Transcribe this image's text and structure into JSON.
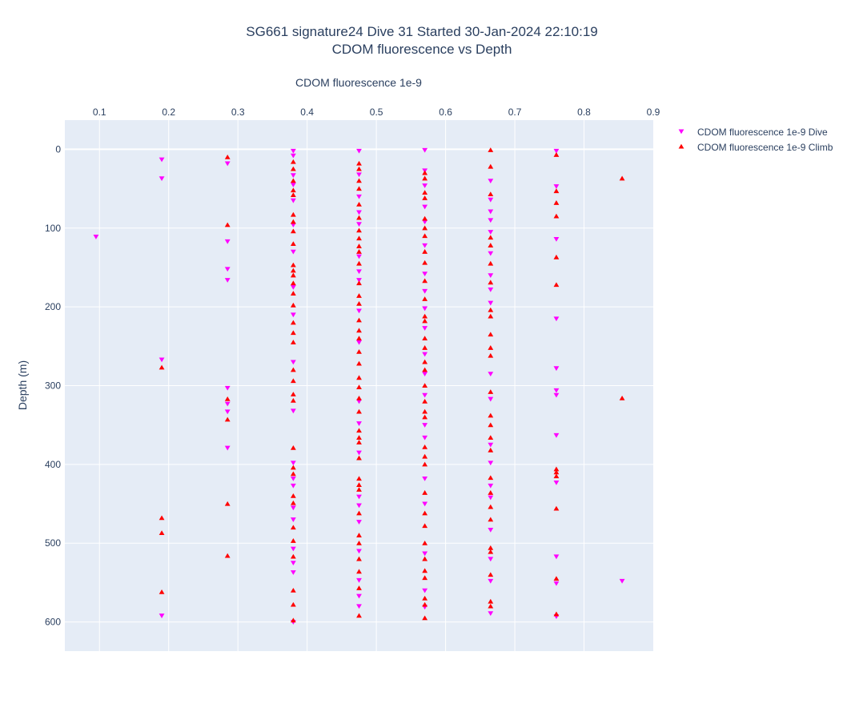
{
  "chart_data": {
    "type": "scatter",
    "title": "SG661 signature24 Dive 31 Started 30-Jan-2024 22:10:19",
    "subtitle": "CDOM fluorescence vs Depth",
    "xlabel": "CDOM fluorescence 1e-9",
    "ylabel": "Depth (m)",
    "xlim": [
      0.05,
      0.9
    ],
    "ylim": [
      637,
      -37
    ],
    "y_reversed": true,
    "x_axis_position": "top",
    "x_ticks": [
      "0.1",
      "0.2",
      "0.3",
      "0.4",
      "0.5",
      "0.6",
      "0.7",
      "0.8",
      "0.9"
    ],
    "x_tick_values": [
      0.1,
      0.2,
      0.3,
      0.4,
      0.5,
      0.6,
      0.7,
      0.8,
      0.9
    ],
    "y_ticks": [
      "0",
      "100",
      "200",
      "300",
      "400",
      "500",
      "600"
    ],
    "y_tick_values": [
      0,
      100,
      200,
      300,
      400,
      500,
      600
    ],
    "grid": true,
    "legend_position": "top-right",
    "colors": {
      "dive": "#ff00ff",
      "climb": "#ff0000",
      "plot_bg": "#e5ecf6",
      "grid": "#ffffff",
      "text": "#2a3f5f"
    },
    "series": [
      {
        "name": "CDOM fluorescence 1e-9 Dive",
        "marker": "triangle-down",
        "color": "#ff00ff",
        "points": [
          [
            0.19,
            13
          ],
          [
            0.19,
            37
          ],
          [
            0.095,
            111
          ],
          [
            0.19,
            267
          ],
          [
            0.19,
            592
          ],
          [
            0.285,
            18
          ],
          [
            0.285,
            117
          ],
          [
            0.285,
            152
          ],
          [
            0.285,
            166
          ],
          [
            0.285,
            303
          ],
          [
            0.285,
            323
          ],
          [
            0.285,
            333
          ],
          [
            0.285,
            379
          ],
          [
            0.38,
            2
          ],
          [
            0.38,
            8
          ],
          [
            0.38,
            33
          ],
          [
            0.38,
            45
          ],
          [
            0.38,
            65
          ],
          [
            0.38,
            96
          ],
          [
            0.38,
            130
          ],
          [
            0.38,
            175
          ],
          [
            0.38,
            210
          ],
          [
            0.38,
            270
          ],
          [
            0.38,
            332
          ],
          [
            0.38,
            398
          ],
          [
            0.38,
            418
          ],
          [
            0.38,
            427
          ],
          [
            0.38,
            455
          ],
          [
            0.38,
            470
          ],
          [
            0.38,
            507
          ],
          [
            0.38,
            525
          ],
          [
            0.38,
            537
          ],
          [
            0.38,
            600
          ],
          [
            0.475,
            2
          ],
          [
            0.475,
            32
          ],
          [
            0.475,
            60
          ],
          [
            0.475,
            80
          ],
          [
            0.475,
            95
          ],
          [
            0.475,
            136
          ],
          [
            0.475,
            155
          ],
          [
            0.475,
            166
          ],
          [
            0.475,
            205
          ],
          [
            0.475,
            245
          ],
          [
            0.475,
            320
          ],
          [
            0.475,
            348
          ],
          [
            0.475,
            385
          ],
          [
            0.475,
            441
          ],
          [
            0.475,
            452
          ],
          [
            0.475,
            473
          ],
          [
            0.475,
            510
          ],
          [
            0.475,
            547
          ],
          [
            0.475,
            567
          ],
          [
            0.475,
            580
          ],
          [
            0.57,
            1
          ],
          [
            0.57,
            27
          ],
          [
            0.57,
            46
          ],
          [
            0.57,
            73
          ],
          [
            0.57,
            92
          ],
          [
            0.57,
            122
          ],
          [
            0.57,
            158
          ],
          [
            0.57,
            180
          ],
          [
            0.57,
            202
          ],
          [
            0.57,
            227
          ],
          [
            0.57,
            260
          ],
          [
            0.57,
            285
          ],
          [
            0.57,
            312
          ],
          [
            0.57,
            350
          ],
          [
            0.57,
            366
          ],
          [
            0.57,
            418
          ],
          [
            0.57,
            450
          ],
          [
            0.57,
            513
          ],
          [
            0.57,
            560
          ],
          [
            0.57,
            581
          ],
          [
            0.665,
            40
          ],
          [
            0.665,
            64
          ],
          [
            0.665,
            79
          ],
          [
            0.665,
            90
          ],
          [
            0.665,
            105
          ],
          [
            0.665,
            132
          ],
          [
            0.665,
            160
          ],
          [
            0.665,
            178
          ],
          [
            0.665,
            195
          ],
          [
            0.665,
            285
          ],
          [
            0.665,
            317
          ],
          [
            0.665,
            375
          ],
          [
            0.665,
            398
          ],
          [
            0.665,
            427
          ],
          [
            0.665,
            442
          ],
          [
            0.665,
            483
          ],
          [
            0.665,
            520
          ],
          [
            0.665,
            548
          ],
          [
            0.665,
            589
          ],
          [
            0.76,
            2
          ],
          [
            0.76,
            47
          ],
          [
            0.76,
            114
          ],
          [
            0.76,
            215
          ],
          [
            0.76,
            278
          ],
          [
            0.76,
            306
          ],
          [
            0.76,
            312
          ],
          [
            0.76,
            363
          ],
          [
            0.76,
            423
          ],
          [
            0.76,
            517
          ],
          [
            0.76,
            551
          ],
          [
            0.76,
            593
          ],
          [
            0.855,
            548
          ]
        ]
      },
      {
        "name": "CDOM fluorescence 1e-9 Climb",
        "marker": "triangle-up",
        "color": "#ff0000",
        "points": [
          [
            0.19,
            277
          ],
          [
            0.19,
            468
          ],
          [
            0.19,
            487
          ],
          [
            0.19,
            562
          ],
          [
            0.285,
            10
          ],
          [
            0.285,
            96
          ],
          [
            0.285,
            317
          ],
          [
            0.285,
            343
          ],
          [
            0.285,
            450
          ],
          [
            0.285,
            516
          ],
          [
            0.38,
            16
          ],
          [
            0.38,
            25
          ],
          [
            0.38,
            40
          ],
          [
            0.38,
            52
          ],
          [
            0.38,
            58
          ],
          [
            0.38,
            83
          ],
          [
            0.38,
            92
          ],
          [
            0.38,
            104
          ],
          [
            0.38,
            120
          ],
          [
            0.38,
            147
          ],
          [
            0.38,
            154
          ],
          [
            0.38,
            160
          ],
          [
            0.38,
            170
          ],
          [
            0.38,
            183
          ],
          [
            0.38,
            198
          ],
          [
            0.38,
            220
          ],
          [
            0.38,
            233
          ],
          [
            0.38,
            245
          ],
          [
            0.38,
            280
          ],
          [
            0.38,
            294
          ],
          [
            0.38,
            311
          ],
          [
            0.38,
            319
          ],
          [
            0.38,
            379
          ],
          [
            0.38,
            404
          ],
          [
            0.38,
            412
          ],
          [
            0.38,
            440
          ],
          [
            0.38,
            449
          ],
          [
            0.38,
            480
          ],
          [
            0.38,
            497
          ],
          [
            0.38,
            517
          ],
          [
            0.38,
            560
          ],
          [
            0.38,
            578
          ],
          [
            0.38,
            598
          ],
          [
            0.475,
            18
          ],
          [
            0.475,
            25
          ],
          [
            0.475,
            40
          ],
          [
            0.475,
            50
          ],
          [
            0.475,
            70
          ],
          [
            0.475,
            87
          ],
          [
            0.475,
            103
          ],
          [
            0.475,
            113
          ],
          [
            0.475,
            123
          ],
          [
            0.475,
            130
          ],
          [
            0.475,
            145
          ],
          [
            0.475,
            170
          ],
          [
            0.475,
            186
          ],
          [
            0.475,
            196
          ],
          [
            0.475,
            217
          ],
          [
            0.475,
            230
          ],
          [
            0.475,
            240
          ],
          [
            0.475,
            257
          ],
          [
            0.475,
            272
          ],
          [
            0.475,
            290
          ],
          [
            0.475,
            302
          ],
          [
            0.475,
            316
          ],
          [
            0.475,
            333
          ],
          [
            0.475,
            357
          ],
          [
            0.475,
            366
          ],
          [
            0.475,
            372
          ],
          [
            0.475,
            392
          ],
          [
            0.475,
            418
          ],
          [
            0.475,
            426
          ],
          [
            0.475,
            432
          ],
          [
            0.475,
            462
          ],
          [
            0.475,
            490
          ],
          [
            0.475,
            500
          ],
          [
            0.475,
            520
          ],
          [
            0.475,
            536
          ],
          [
            0.475,
            557
          ],
          [
            0.475,
            592
          ],
          [
            0.57,
            30
          ],
          [
            0.57,
            37
          ],
          [
            0.57,
            55
          ],
          [
            0.57,
            62
          ],
          [
            0.57,
            88
          ],
          [
            0.57,
            100
          ],
          [
            0.57,
            110
          ],
          [
            0.57,
            130
          ],
          [
            0.57,
            144
          ],
          [
            0.57,
            167
          ],
          [
            0.57,
            190
          ],
          [
            0.57,
            212
          ],
          [
            0.57,
            218
          ],
          [
            0.57,
            240
          ],
          [
            0.57,
            252
          ],
          [
            0.57,
            270
          ],
          [
            0.57,
            280
          ],
          [
            0.57,
            300
          ],
          [
            0.57,
            320
          ],
          [
            0.57,
            333
          ],
          [
            0.57,
            340
          ],
          [
            0.57,
            378
          ],
          [
            0.57,
            390
          ],
          [
            0.57,
            400
          ],
          [
            0.57,
            436
          ],
          [
            0.57,
            462
          ],
          [
            0.57,
            478
          ],
          [
            0.57,
            500
          ],
          [
            0.57,
            520
          ],
          [
            0.57,
            535
          ],
          [
            0.57,
            544
          ],
          [
            0.57,
            570
          ],
          [
            0.57,
            578
          ],
          [
            0.57,
            595
          ],
          [
            0.665,
            1
          ],
          [
            0.665,
            22
          ],
          [
            0.665,
            57
          ],
          [
            0.665,
            112
          ],
          [
            0.665,
            122
          ],
          [
            0.665,
            145
          ],
          [
            0.665,
            169
          ],
          [
            0.665,
            204
          ],
          [
            0.665,
            212
          ],
          [
            0.665,
            235
          ],
          [
            0.665,
            252
          ],
          [
            0.665,
            262
          ],
          [
            0.665,
            308
          ],
          [
            0.665,
            338
          ],
          [
            0.665,
            350
          ],
          [
            0.665,
            366
          ],
          [
            0.665,
            382
          ],
          [
            0.665,
            417
          ],
          [
            0.665,
            436
          ],
          [
            0.665,
            454
          ],
          [
            0.665,
            470
          ],
          [
            0.665,
            506
          ],
          [
            0.665,
            511
          ],
          [
            0.665,
            540
          ],
          [
            0.665,
            574
          ],
          [
            0.665,
            580
          ],
          [
            0.76,
            7
          ],
          [
            0.76,
            53
          ],
          [
            0.76,
            68
          ],
          [
            0.76,
            85
          ],
          [
            0.76,
            137
          ],
          [
            0.76,
            172
          ],
          [
            0.76,
            406
          ],
          [
            0.76,
            410
          ],
          [
            0.76,
            415
          ],
          [
            0.76,
            456
          ],
          [
            0.76,
            545
          ],
          [
            0.76,
            590
          ],
          [
            0.855,
            37
          ],
          [
            0.855,
            316
          ]
        ]
      }
    ]
  }
}
